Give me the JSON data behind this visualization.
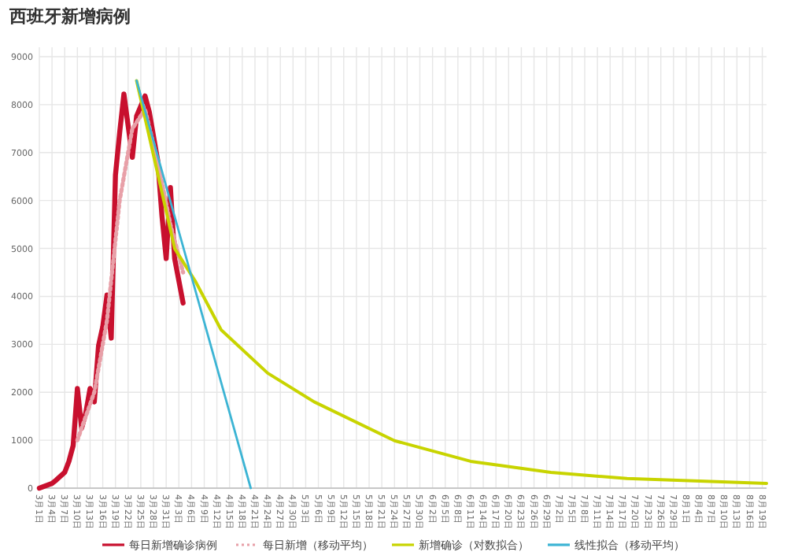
{
  "chart_data": {
    "type": "line",
    "title": "西班牙新增病例",
    "xlim": [
      "--03-01",
      "--08-20"
    ],
    "ylim": [
      0,
      9000
    ],
    "yticks": [
      0,
      1000,
      2000,
      3000,
      4000,
      5000,
      6000,
      7000,
      8000,
      9000
    ],
    "xticks": [
      {
        "value": "--03-01",
        "label": "3月1日"
      },
      {
        "value": "--03-04",
        "label": "3月4日"
      },
      {
        "value": "--03-07",
        "label": "3月7日"
      },
      {
        "value": "--03-10",
        "label": "3月10日"
      },
      {
        "value": "--03-13",
        "label": "3月13日"
      },
      {
        "value": "--03-16",
        "label": "3月16日"
      },
      {
        "value": "--03-19",
        "label": "3月19日"
      },
      {
        "value": "--03-22",
        "label": "3月22日"
      },
      {
        "value": "--03-25",
        "label": "3月25日"
      },
      {
        "value": "--03-28",
        "label": "3月28日"
      },
      {
        "value": "--03-31",
        "label": "3月31日"
      },
      {
        "value": "--04-03",
        "label": "4月3日"
      },
      {
        "value": "--04-06",
        "label": "4月6日"
      },
      {
        "value": "--04-09",
        "label": "4月9日"
      },
      {
        "value": "--04-12",
        "label": "4月12日"
      },
      {
        "value": "--04-15",
        "label": "4月15日"
      },
      {
        "value": "--04-18",
        "label": "4月18日"
      },
      {
        "value": "--04-21",
        "label": "4月21日"
      },
      {
        "value": "--04-24",
        "label": "4月24日"
      },
      {
        "value": "--04-27",
        "label": "4月27日"
      },
      {
        "value": "--04-30",
        "label": "4月30日"
      },
      {
        "value": "--05-03",
        "label": "5月3日"
      },
      {
        "value": "--05-06",
        "label": "5月6日"
      },
      {
        "value": "--05-09",
        "label": "5月9日"
      },
      {
        "value": "--05-12",
        "label": "5月12日"
      },
      {
        "value": "--05-15",
        "label": "5月15日"
      },
      {
        "value": "--05-18",
        "label": "5月18日"
      },
      {
        "value": "--05-21",
        "label": "5月21日"
      },
      {
        "value": "--05-24",
        "label": "5月24日"
      },
      {
        "value": "--05-27",
        "label": "5月27日"
      },
      {
        "value": "--05-30",
        "label": "5月30日"
      },
      {
        "value": "--06-02",
        "label": "6月2日"
      },
      {
        "value": "--06-05",
        "label": "6月5日"
      },
      {
        "value": "--06-08",
        "label": "6月8日"
      },
      {
        "value": "--06-11",
        "label": "6月11日"
      },
      {
        "value": "--06-14",
        "label": "6月14日"
      },
      {
        "value": "--06-17",
        "label": "6月17日"
      },
      {
        "value": "--06-20",
        "label": "6月20日"
      },
      {
        "value": "--06-23",
        "label": "6月23日"
      },
      {
        "value": "--06-26",
        "label": "6月26日"
      },
      {
        "value": "--06-29",
        "label": "6月29日"
      },
      {
        "value": "--07-02",
        "label": "7月2日"
      },
      {
        "value": "--07-05",
        "label": "7月5日"
      },
      {
        "value": "--07-08",
        "label": "7月8日"
      },
      {
        "value": "--07-11",
        "label": "7月11日"
      },
      {
        "value": "--07-14",
        "label": "7月14日"
      },
      {
        "value": "--07-17",
        "label": "7月17日"
      },
      {
        "value": "--07-20",
        "label": "7月20日"
      },
      {
        "value": "--07-23",
        "label": "7月23日"
      },
      {
        "value": "--07-26",
        "label": "7月26日"
      },
      {
        "value": "--07-29",
        "label": "7月29日"
      },
      {
        "value": "--08-01",
        "label": "8月1日"
      },
      {
        "value": "--08-04",
        "label": "8月4日"
      },
      {
        "value": "--08-07",
        "label": "8月7日"
      },
      {
        "value": "--08-10",
        "label": "8月10日"
      },
      {
        "value": "--08-13",
        "label": "8月13日"
      },
      {
        "value": "--08-16",
        "label": "8月16日"
      },
      {
        "value": "--08-19",
        "label": "8月19日"
      }
    ],
    "grid": true,
    "legend": "bottom",
    "marker": "none",
    "series": [
      {
        "name": "每日新增确诊病例",
        "color": "#c8102e",
        "line_style": "solid",
        "x": [
          "--03-01",
          "--03-04",
          "--03-05",
          "--03-07",
          "--03-08",
          "--03-09",
          "--03-10",
          "--03-11",
          "--03-12",
          "--03-13",
          "--03-14",
          "--03-15",
          "--03-16",
          "--03-17",
          "--03-18",
          "--03-19",
          "--03-20",
          "--03-21",
          "--03-23",
          "--03-24",
          "--03-26",
          "--03-27",
          "--03-29",
          "--03-30",
          "--03-31",
          "--04-01",
          "--04-02",
          "--04-04"
        ],
        "values": [
          0,
          100,
          170,
          330,
          560,
          890,
          2080,
          1250,
          1580,
          2080,
          1800,
          2970,
          3370,
          4030,
          3130,
          6530,
          7420,
          8220,
          6900,
          7760,
          8180,
          7850,
          6830,
          5680,
          4790,
          6270,
          4790,
          3860
        ]
      },
      {
        "name": "每日新增（移动平均）",
        "color": "#e8a0a8",
        "line_style": "dotted",
        "x": [
          "--03-10",
          "--03-14",
          "--03-17",
          "--03-20",
          "--03-23",
          "--03-26",
          "--03-29",
          "--04-01",
          "--04-04"
        ],
        "values": [
          1000,
          2000,
          3500,
          6000,
          7500,
          7900,
          6800,
          5500,
          4500
        ]
      },
      {
        "name": "新增确诊（对数拟合）",
        "color": "#c8d400",
        "line_style": "solid",
        "x": [
          "--03-24",
          "--04-02",
          "--04-07",
          "--04-13",
          "--04-24",
          "--05-05",
          "--05-24",
          "--06-11",
          "--06-30",
          "--07-18",
          "--08-20"
        ],
        "values": [
          8500,
          5000,
          4300,
          3300,
          2400,
          1800,
          990,
          560,
          330,
          200,
          100
        ]
      },
      {
        "name": "线性拟合（移动平均）",
        "color": "#3cb4d4",
        "line_style": "solid",
        "x": [
          "--03-24",
          "--04-20"
        ],
        "values": [
          8500,
          0
        ]
      }
    ]
  }
}
